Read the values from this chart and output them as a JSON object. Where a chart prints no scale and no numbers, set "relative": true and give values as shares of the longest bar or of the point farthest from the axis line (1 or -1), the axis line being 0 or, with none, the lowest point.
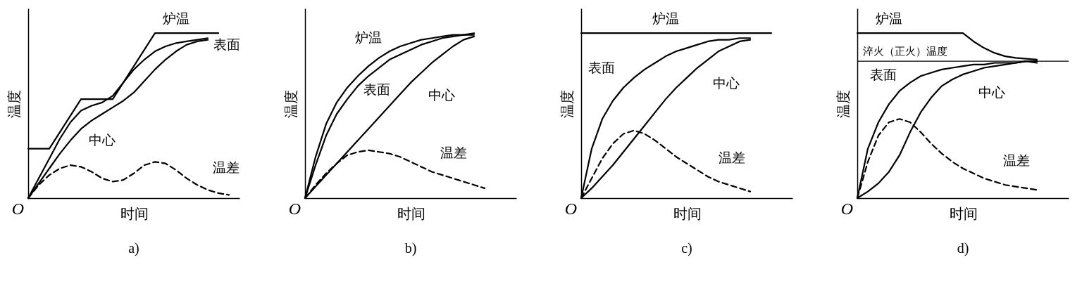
{
  "chart_data": [
    {
      "type": "line",
      "title": "a)",
      "xlabel": "时间",
      "ylabel": "温度",
      "relative": true,
      "tick_labels": false,
      "annotations": [
        "O"
      ],
      "categories": [
        null,
        null,
        null,
        null,
        null,
        null,
        null,
        null,
        null,
        null,
        null,
        null,
        null,
        null,
        null,
        null,
        null,
        null,
        null,
        null,
        null
      ],
      "series": [
        {
          "name": "炉温",
          "color": "#000000",
          "values": [
            0.3,
            0.3,
            0.3,
            0.4,
            0.5,
            0.6,
            0.6,
            0.6,
            0.6,
            0.7,
            0.8,
            0.9,
            1.0,
            1.0,
            1.0,
            1.0,
            1.0,
            1.0,
            1.0,
            null,
            null
          ]
        },
        {
          "name": "表面",
          "color": "#000000",
          "values": [
            0,
            0.12,
            0.24,
            0.36,
            0.46,
            0.53,
            0.56,
            0.58,
            0.62,
            0.7,
            0.78,
            0.84,
            0.89,
            0.92,
            0.94,
            0.95,
            0.96,
            0.97,
            null,
            null,
            null
          ]
        },
        {
          "name": "中心",
          "color": "#000000",
          "values": [
            0,
            0.09,
            0.18,
            0.27,
            0.35,
            0.42,
            0.47,
            0.51,
            0.55,
            0.59,
            0.64,
            0.71,
            0.78,
            0.84,
            0.89,
            0.93,
            0.95,
            0.96,
            null,
            null,
            null
          ]
        },
        {
          "name": "温差",
          "color": "#000000",
          "line_style": "dashed",
          "values": [
            0,
            0.08,
            0.14,
            0.18,
            0.2,
            0.19,
            0.16,
            0.12,
            0.1,
            0.11,
            0.15,
            0.2,
            0.22,
            0.21,
            0.17,
            0.12,
            0.08,
            0.05,
            0.03,
            0.02,
            null
          ]
        }
      ]
    },
    {
      "type": "line",
      "title": "b)",
      "xlabel": "时间",
      "ylabel": "温度",
      "relative": true,
      "tick_labels": false,
      "annotations": [
        "O"
      ],
      "categories": [
        null,
        null,
        null,
        null,
        null,
        null,
        null,
        null,
        null,
        null,
        null,
        null,
        null,
        null,
        null,
        null,
        null,
        null,
        null,
        null,
        null
      ],
      "series": [
        {
          "name": "炉温",
          "color": "#000000",
          "values": [
            0,
            0.25,
            0.45,
            0.58,
            0.67,
            0.74,
            0.8,
            0.85,
            0.89,
            0.92,
            0.94,
            0.96,
            0.97,
            0.98,
            0.99,
            0.99,
            1.0,
            null,
            null,
            null,
            null
          ]
        },
        {
          "name": "表面",
          "color": "#000000",
          "values": [
            0,
            0.2,
            0.38,
            0.51,
            0.6,
            0.68,
            0.74,
            0.79,
            0.84,
            0.87,
            0.9,
            0.93,
            0.95,
            0.97,
            0.98,
            0.99,
            0.99,
            null,
            null,
            null,
            null
          ]
        },
        {
          "name": "中心",
          "color": "#000000",
          "values": [
            0,
            0.07,
            0.14,
            0.21,
            0.28,
            0.35,
            0.42,
            0.49,
            0.56,
            0.63,
            0.7,
            0.76,
            0.82,
            0.87,
            0.92,
            0.96,
            0.98,
            null,
            null,
            null,
            null
          ]
        },
        {
          "name": "温差",
          "color": "#000000",
          "line_style": "dashed",
          "values": [
            0,
            0.08,
            0.15,
            0.21,
            0.26,
            0.28,
            0.29,
            0.28,
            0.27,
            0.25,
            0.22,
            0.19,
            0.16,
            0.14,
            0.12,
            0.1,
            0.08,
            0.06,
            null,
            null,
            null
          ]
        }
      ]
    },
    {
      "type": "line",
      "title": "c)",
      "xlabel": "时间",
      "ylabel": "温度",
      "relative": true,
      "tick_labels": false,
      "annotations": [
        "O"
      ],
      "categories": [
        null,
        null,
        null,
        null,
        null,
        null,
        null,
        null,
        null,
        null,
        null,
        null,
        null,
        null,
        null,
        null,
        null,
        null,
        null,
        null,
        null
      ],
      "series": [
        {
          "name": "炉温",
          "color": "#000000",
          "values": [
            1.0,
            1.0,
            1.0,
            1.0,
            1.0,
            1.0,
            1.0,
            1.0,
            1.0,
            1.0,
            1.0,
            1.0,
            1.0,
            1.0,
            1.0,
            1.0,
            1.0,
            1.0,
            1.0,
            null,
            null
          ]
        },
        {
          "name": "表面",
          "color": "#000000",
          "values": [
            0,
            0.3,
            0.48,
            0.59,
            0.67,
            0.73,
            0.78,
            0.82,
            0.86,
            0.89,
            0.91,
            0.93,
            0.95,
            0.96,
            0.96,
            0.97,
            0.97,
            null,
            null,
            null,
            null
          ]
        },
        {
          "name": "中心",
          "color": "#000000",
          "values": [
            0,
            0.06,
            0.13,
            0.2,
            0.28,
            0.36,
            0.44,
            0.52,
            0.6,
            0.67,
            0.73,
            0.79,
            0.84,
            0.89,
            0.92,
            0.95,
            0.96,
            null,
            null,
            null,
            null
          ]
        },
        {
          "name": "温差",
          "color": "#000000",
          "line_style": "dashed",
          "values": [
            0,
            0.12,
            0.24,
            0.33,
            0.39,
            0.41,
            0.39,
            0.35,
            0.3,
            0.25,
            0.21,
            0.17,
            0.13,
            0.1,
            0.08,
            0.06,
            0.04,
            null,
            null,
            null,
            null
          ]
        }
      ]
    },
    {
      "type": "line",
      "title": "d)",
      "xlabel": "时间",
      "ylabel": "温度",
      "relative": true,
      "tick_labels": false,
      "annotations": [
        "O"
      ],
      "categories": [
        null,
        null,
        null,
        null,
        null,
        null,
        null,
        null,
        null,
        null,
        null,
        null,
        null,
        null,
        null,
        null,
        null,
        null,
        null,
        null,
        null
      ],
      "ref_lines": [
        {
          "axis": "y",
          "value": 0.83,
          "label": "淬火（正火）温度"
        }
      ],
      "series": [
        {
          "name": "炉温",
          "color": "#000000",
          "values": [
            1.0,
            1.0,
            1.0,
            1.0,
            1.0,
            1.0,
            1.0,
            1.0,
            1.0,
            1.0,
            1.0,
            0.95,
            0.91,
            0.88,
            0.86,
            0.85,
            0.845,
            0.84,
            null,
            null,
            null
          ]
        },
        {
          "name": "表面",
          "color": "#000000",
          "values": [
            0,
            0.3,
            0.46,
            0.57,
            0.65,
            0.7,
            0.74,
            0.76,
            0.78,
            0.79,
            0.8,
            0.81,
            0.81,
            0.82,
            0.82,
            0.82,
            0.83,
            0.83,
            null,
            null,
            null
          ]
        },
        {
          "name": "中心",
          "color": "#000000",
          "values": [
            0,
            0.04,
            0.09,
            0.16,
            0.26,
            0.4,
            0.52,
            0.61,
            0.68,
            0.72,
            0.75,
            0.77,
            0.79,
            0.8,
            0.81,
            0.82,
            0.83,
            0.82,
            null,
            null,
            null
          ]
        },
        {
          "name": "温差",
          "color": "#000000",
          "line_style": "dashed",
          "values": [
            0,
            0.22,
            0.38,
            0.46,
            0.48,
            0.46,
            0.4,
            0.33,
            0.27,
            0.22,
            0.18,
            0.15,
            0.12,
            0.1,
            0.08,
            0.07,
            0.06,
            0.05,
            null,
            null,
            null
          ]
        }
      ]
    }
  ]
}
